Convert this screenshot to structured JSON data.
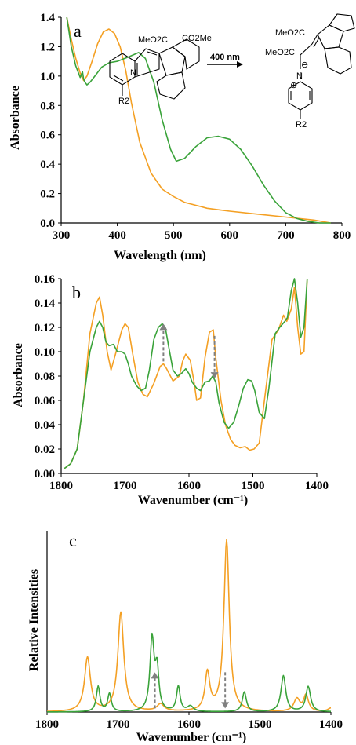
{
  "colors": {
    "orange": "#f4a024",
    "green": "#3aa33a",
    "arrow": "#808080"
  },
  "chart_data": [
    {
      "id": "a",
      "type": "line",
      "panel_label": "a",
      "xlabel": "Wavelength (nm)",
      "ylabel": "Absorbance",
      "xlim": [
        300,
        800
      ],
      "ylim": [
        0,
        1.4
      ],
      "xticks": [
        "300",
        "400",
        "500",
        "600",
        "700",
        "800"
      ],
      "yticks": [
        "0.0",
        "0.2",
        "0.4",
        "0.6",
        "0.8",
        "1.0",
        "1.2",
        "1.4"
      ],
      "series": [
        {
          "color": "orange",
          "x": [
            310,
            318,
            326,
            334,
            340,
            346,
            355,
            365,
            375,
            385,
            395,
            405,
            415,
            425,
            440,
            460,
            480,
            500,
            520,
            540,
            560,
            580,
            600,
            650,
            700,
            750,
            780
          ],
          "y": [
            1.4,
            1.25,
            1.12,
            1.02,
            0.97,
            1.0,
            1.1,
            1.22,
            1.3,
            1.32,
            1.29,
            1.2,
            1.04,
            0.82,
            0.55,
            0.34,
            0.23,
            0.18,
            0.14,
            0.12,
            0.1,
            0.09,
            0.08,
            0.06,
            0.04,
            0.02,
            0.0
          ]
        },
        {
          "color": "green",
          "x": [
            310,
            318,
            326,
            334,
            338,
            340,
            342,
            346,
            352,
            360,
            372,
            385,
            400,
            420,
            438,
            450,
            465,
            480,
            495,
            505,
            520,
            540,
            560,
            580,
            600,
            620,
            640,
            660,
            680,
            700,
            720,
            740,
            760,
            780
          ],
          "y": [
            1.4,
            1.2,
            1.07,
            0.99,
            1.03,
            0.98,
            0.96,
            0.94,
            0.96,
            1.0,
            1.06,
            1.09,
            1.1,
            1.13,
            1.16,
            1.12,
            0.96,
            0.7,
            0.5,
            0.42,
            0.44,
            0.52,
            0.58,
            0.59,
            0.57,
            0.5,
            0.39,
            0.26,
            0.15,
            0.07,
            0.03,
            0.01,
            0.0,
            0.0
          ]
        }
      ],
      "scheme": {
        "left_substituents": [
          "MeO2C",
          "CO2Me"
        ],
        "right_substituents": [
          "MeO2C",
          "MeO2C"
        ],
        "ring_sub": "R2",
        "arrow_label": "400 nm",
        "atoms": [
          "N",
          "N",
          "⊖",
          "⊕"
        ]
      }
    },
    {
      "id": "b",
      "type": "line",
      "panel_label": "b",
      "xlabel": "Wavenumber (cm⁻¹)",
      "ylabel": "Absorbance",
      "xlim": [
        1800,
        1400
      ],
      "ylim": [
        0,
        0.16
      ],
      "xticks": [
        "1800",
        "1700",
        "1600",
        "1500",
        "1400"
      ],
      "yticks": [
        "0.00",
        "0.02",
        "0.04",
        "0.06",
        "0.08",
        "0.10",
        "0.12",
        "0.14",
        "0.16"
      ],
      "series": [
        {
          "color": "orange",
          "x": [
            1795,
            1785,
            1775,
            1765,
            1755,
            1745,
            1740,
            1735,
            1728,
            1722,
            1715,
            1705,
            1700,
            1695,
            1688,
            1680,
            1672,
            1665,
            1655,
            1645,
            1640,
            1635,
            1625,
            1615,
            1610,
            1605,
            1598,
            1592,
            1588,
            1582,
            1575,
            1568,
            1562,
            1558,
            1550,
            1543,
            1535,
            1528,
            1520,
            1512,
            1505,
            1498,
            1490,
            1482,
            1470,
            1460,
            1452,
            1447,
            1440,
            1435,
            1430,
            1425,
            1420,
            1415
          ],
          "y": [
            0.004,
            0.008,
            0.02,
            0.06,
            0.115,
            0.14,
            0.145,
            0.13,
            0.1,
            0.085,
            0.098,
            0.118,
            0.123,
            0.12,
            0.098,
            0.075,
            0.065,
            0.063,
            0.074,
            0.088,
            0.09,
            0.086,
            0.076,
            0.08,
            0.092,
            0.098,
            0.093,
            0.075,
            0.06,
            0.062,
            0.095,
            0.116,
            0.118,
            0.095,
            0.06,
            0.04,
            0.028,
            0.023,
            0.021,
            0.022,
            0.019,
            0.02,
            0.025,
            0.06,
            0.11,
            0.118,
            0.13,
            0.125,
            0.135,
            0.153,
            0.12,
            0.098,
            0.1,
            0.16
          ]
        },
        {
          "color": "green",
          "x": [
            1795,
            1785,
            1775,
            1765,
            1755,
            1745,
            1740,
            1735,
            1730,
            1725,
            1718,
            1712,
            1705,
            1700,
            1695,
            1690,
            1682,
            1675,
            1668,
            1662,
            1655,
            1648,
            1642,
            1637,
            1632,
            1625,
            1618,
            1612,
            1605,
            1600,
            1595,
            1588,
            1582,
            1575,
            1568,
            1563,
            1558,
            1553,
            1545,
            1538,
            1530,
            1522,
            1515,
            1508,
            1502,
            1497,
            1490,
            1482,
            1475,
            1465,
            1458,
            1450,
            1446,
            1440,
            1435,
            1430,
            1425,
            1420,
            1415
          ],
          "y": [
            0.004,
            0.008,
            0.02,
            0.06,
            0.1,
            0.12,
            0.125,
            0.12,
            0.108,
            0.105,
            0.106,
            0.1,
            0.1,
            0.098,
            0.09,
            0.08,
            0.072,
            0.068,
            0.07,
            0.085,
            0.11,
            0.12,
            0.123,
            0.12,
            0.105,
            0.085,
            0.08,
            0.082,
            0.086,
            0.082,
            0.075,
            0.07,
            0.068,
            0.075,
            0.076,
            0.08,
            0.075,
            0.058,
            0.042,
            0.037,
            0.042,
            0.056,
            0.07,
            0.077,
            0.076,
            0.068,
            0.05,
            0.045,
            0.07,
            0.115,
            0.12,
            0.125,
            0.128,
            0.15,
            0.16,
            0.14,
            0.112,
            0.12,
            0.16
          ]
        }
      ],
      "arrows": [
        {
          "x": 1640,
          "from": 0.092,
          "to": 0.123,
          "dir": "up"
        },
        {
          "x": 1560,
          "from": 0.113,
          "to": 0.078,
          "dir": "down"
        }
      ]
    },
    {
      "id": "c",
      "type": "line",
      "panel_label": "c",
      "xlabel": "Wavenumber (cm⁻¹)",
      "ylabel": "Relative Intensities",
      "xlim": [
        1800,
        1400
      ],
      "ylim": [
        0,
        1
      ],
      "xticks": [
        "1800",
        "1700",
        "1600",
        "1500",
        "1400"
      ],
      "yticks": [],
      "series": [
        {
          "color": "orange",
          "peaks": [
            [
              1743,
              0.3,
              5
            ],
            [
              1696,
              0.55,
              5
            ],
            [
              1640,
              0.04,
              6
            ],
            [
              1574,
              0.21,
              4
            ],
            [
              1547,
              0.95,
              4.5
            ],
            [
              1448,
              0.07,
              5
            ],
            [
              1435,
              0.09,
              4
            ],
            [
              1400,
              0.02,
              5
            ]
          ]
        },
        {
          "color": "green",
          "peaks": [
            [
              1728,
              0.14,
              3
            ],
            [
              1712,
              0.1,
              3
            ],
            [
              1652,
              0.4,
              3.5
            ],
            [
              1645,
              0.22,
              3
            ],
            [
              1615,
              0.14,
              3
            ],
            [
              1598,
              0.03,
              5
            ],
            [
              1522,
              0.11,
              3.5
            ],
            [
              1467,
              0.2,
              4
            ],
            [
              1432,
              0.14,
              4
            ]
          ]
        }
      ],
      "arrows": [
        {
          "x": 1648,
          "from": 0.02,
          "to": 0.22,
          "dir": "up"
        },
        {
          "x": 1549,
          "from": 0.22,
          "to": 0.02,
          "dir": "down"
        }
      ]
    }
  ]
}
